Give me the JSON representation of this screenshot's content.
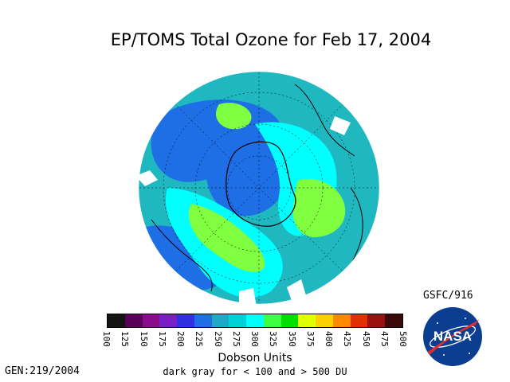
{
  "title": "EP/TOMS Total Ozone for Feb 17, 2004",
  "credit": "GSFC/916",
  "generated": "GEN:219/2004",
  "units_label": "Dobson Units",
  "range_note": "dark gray for < 100 and > 500 DU",
  "logo_text": "NASA",
  "colorbar": {
    "ticks": [
      "100",
      "125",
      "150",
      "175",
      "200",
      "225",
      "250",
      "275",
      "300",
      "325",
      "350",
      "375",
      "400",
      "425",
      "450",
      "475",
      "500"
    ],
    "colors": [
      "#141414",
      "#5a005a",
      "#8c0a8c",
      "#7a1fc8",
      "#3030e0",
      "#1e6ee6",
      "#20a8c8",
      "#00d0d8",
      "#00ffff",
      "#40ff40",
      "#00e000",
      "#e0ff00",
      "#ffd000",
      "#ff8800",
      "#e03000",
      "#9a1010",
      "#3a0a0a"
    ]
  },
  "map": {
    "projection": "south-polar-orthographic",
    "regions": [
      {
        "name": "base",
        "level": "275-300",
        "color": "#20b8c0"
      },
      {
        "name": "antarctic-low",
        "level": "225-250",
        "color": "#1e6ee6"
      },
      {
        "name": "cyan-ring",
        "level": "300-325",
        "color": "#00ffff"
      },
      {
        "name": "high-sector",
        "level": "350-375",
        "color": "#80ff40"
      }
    ]
  }
}
